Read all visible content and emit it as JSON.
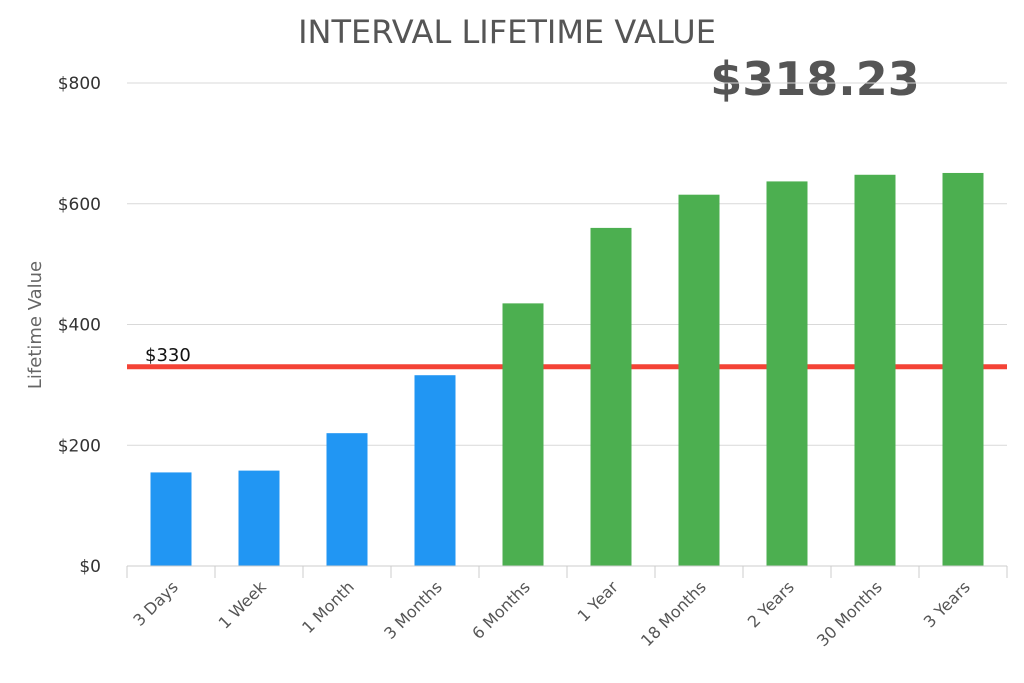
{
  "chart_data": {
    "type": "bar",
    "title": "INTERVAL LIFETIME VALUE",
    "highlight_value": "$318.23",
    "ylabel": "Lifetime Value",
    "xlabel": "",
    "ylim": [
      0,
      800
    ],
    "yticks": [
      0,
      200,
      400,
      600,
      800
    ],
    "ytick_labels": [
      "$0",
      "$200",
      "$400",
      "$600",
      "$800"
    ],
    "grid": true,
    "categories": [
      "3 Days",
      "1 Week",
      "1 Month",
      "3 Months",
      "6 Months",
      "1 Year",
      "18 Months",
      "2 Years",
      "30 Months",
      "3 Years"
    ],
    "values": [
      155,
      158,
      220,
      316,
      435,
      560,
      615,
      637,
      648,
      651
    ],
    "bar_colors": [
      "#2196f3",
      "#2196f3",
      "#2196f3",
      "#2196f3",
      "#4caf50",
      "#4caf50",
      "#4caf50",
      "#4caf50",
      "#4caf50",
      "#4caf50"
    ],
    "reference_line": {
      "value": 330,
      "label": "$330",
      "color": "#f44336"
    }
  }
}
